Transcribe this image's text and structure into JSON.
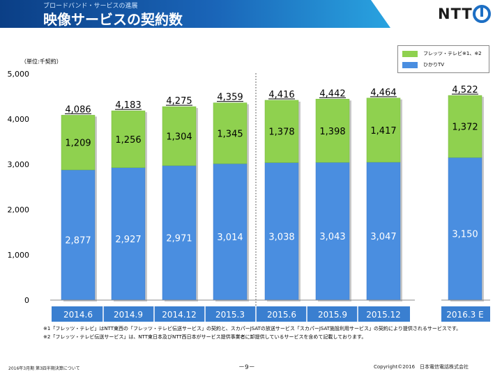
{
  "header": {
    "subtitle": "ブロードバンド・サービスの進展",
    "title": "映像サービスの契約数",
    "logo_text": "NTT"
  },
  "unit_label": "（単位:千契約）",
  "colors": {
    "hikari_tv": "#4a8ee0",
    "flets_tv": "#8fd14f",
    "category_bar": "#3a7fd0"
  },
  "chart_data": {
    "type": "bar",
    "stacked": true,
    "categories": [
      "2014.6",
      "2014.9",
      "2014.12",
      "2015.3",
      "2015.6",
      "2015.9",
      "2015.12",
      "2016.3 E"
    ],
    "series": [
      {
        "name": "ひかりTV",
        "values": [
          2877,
          2927,
          2971,
          3014,
          3038,
          3043,
          3047,
          3150
        ]
      },
      {
        "name": "フレッツ・テレビ※1、※2",
        "values": [
          1209,
          1256,
          1304,
          1345,
          1378,
          1398,
          1417,
          1372
        ]
      }
    ],
    "totals": [
      4086,
      4183,
      4275,
      4359,
      4416,
      4442,
      4464,
      4522
    ],
    "value_labels": {
      "hikari_tv": [
        "2,877",
        "2,927",
        "2,971",
        "3,014",
        "3,038",
        "3,043",
        "3,047",
        "3,150"
      ],
      "flets_tv": [
        "1,209",
        "1,256",
        "1,304",
        "1,345",
        "1,378",
        "1,398",
        "1,417",
        "1,372"
      ],
      "totals": [
        "4,086",
        "4,183",
        "4,275",
        "4,359",
        "4,416",
        "4,442",
        "4,464",
        "4,522"
      ]
    },
    "y_ticks": [
      "0",
      "1,000",
      "2,000",
      "3,000",
      "4,000",
      "5,000"
    ],
    "ylim": [
      0,
      5000
    ],
    "legend": [
      {
        "label": "フレッツ・テレビ※1、※2",
        "color": "#8fd14f"
      },
      {
        "label": "ひかりTV",
        "color": "#4a8ee0"
      }
    ],
    "legend_position": "top-right",
    "grid": false
  },
  "footnotes": [
    "※1「フレッツ・テレビ」はNTT東西の「フレッツ・テレビ伝送サービス」の契約と、スカパーJSATの放送サービス「スカパーJSAT施設利用サービス」の契約により提供されるサービスです。",
    "※2「フレッツ・テレビ伝送サービス」は、NTT東日本及びNTT西日本がサービス提供事業者に卸提供しているサービスを含めて記載しております。"
  ],
  "footer": {
    "left": "2016年3月期 第3四半期決算について",
    "page": "－9－",
    "right": "Copyright©2016　日本電信電話株式会社"
  }
}
